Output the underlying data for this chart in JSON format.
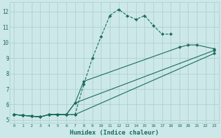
{
  "xlabel": "Humidex (Indice chaleur)",
  "bg_color": "#cce8e8",
  "line_color": "#1a6b5a",
  "grid_color": "#aacccc",
  "xlim": [
    -0.5,
    23.5
  ],
  "ylim": [
    4.8,
    12.6
  ],
  "yticks": [
    5,
    6,
    7,
    8,
    9,
    10,
    11,
    12
  ],
  "xticks": [
    0,
    1,
    2,
    3,
    4,
    5,
    6,
    7,
    8,
    9,
    10,
    11,
    12,
    13,
    14,
    15,
    16,
    17,
    18,
    19,
    20,
    21,
    22,
    23
  ],
  "line1": {
    "x": [
      0,
      1,
      2,
      3,
      4,
      5,
      6,
      7,
      8,
      9,
      10,
      11,
      12,
      13,
      14,
      15,
      16,
      17,
      18
    ],
    "y": [
      5.35,
      5.3,
      5.25,
      5.2,
      5.35,
      5.35,
      5.35,
      5.35,
      7.3,
      9.0,
      10.4,
      11.75,
      12.15,
      11.75,
      11.5,
      11.75,
      11.1,
      10.55,
      10.55
    ],
    "linestyle": "--"
  },
  "line2": {
    "x": [
      0,
      1,
      2,
      3,
      4,
      5,
      6,
      7,
      8,
      19,
      20,
      21,
      23
    ],
    "y": [
      5.35,
      5.3,
      5.25,
      5.2,
      5.35,
      5.35,
      5.35,
      6.1,
      7.5,
      9.7,
      9.85,
      9.85,
      9.6
    ],
    "linestyle": "-"
  },
  "line3": {
    "x": [
      0,
      1,
      2,
      3,
      4,
      5,
      6,
      7,
      23
    ],
    "y": [
      5.35,
      5.3,
      5.25,
      5.2,
      5.35,
      5.35,
      5.35,
      6.1,
      9.5
    ],
    "linestyle": "-"
  },
  "line4": {
    "x": [
      0,
      1,
      2,
      3,
      4,
      5,
      6,
      7,
      23
    ],
    "y": [
      5.35,
      5.3,
      5.25,
      5.2,
      5.35,
      5.35,
      5.35,
      5.35,
      9.3
    ],
    "linestyle": "-"
  }
}
